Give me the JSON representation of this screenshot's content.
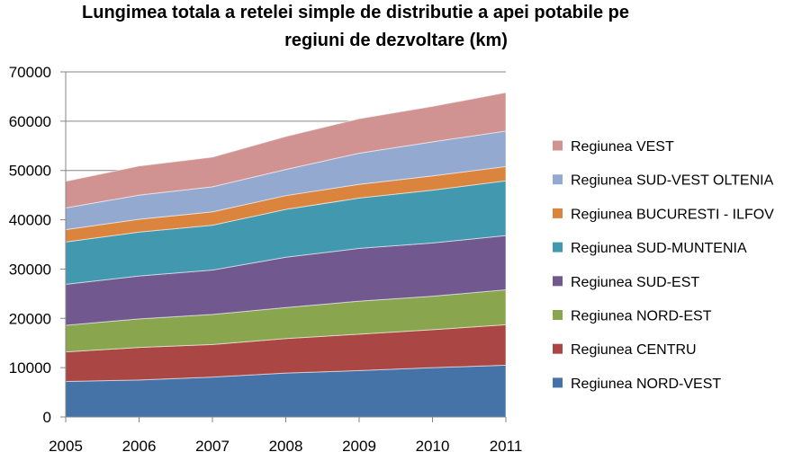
{
  "chart_data": {
    "type": "area",
    "stacked": true,
    "title_lines": [
      "Lungimea totala a retelei simple de distributie a apei potabile pe",
      "regiuni de dezvoltare  (km)"
    ],
    "x": [
      "2005",
      "2006",
      "2007",
      "2008",
      "2009",
      "2010",
      "2011"
    ],
    "ylim": [
      0,
      70000
    ],
    "yticks": [
      "0",
      "10000",
      "20000",
      "30000",
      "40000",
      "50000",
      "60000",
      "70000"
    ],
    "grid": true,
    "legend_position": "right",
    "series": [
      {
        "name": "Regiunea NORD-VEST",
        "color": "#4572A7",
        "values": [
          7200,
          7500,
          8100,
          8900,
          9400,
          10000,
          10500
        ]
      },
      {
        "name": "Regiunea CENTRU",
        "color": "#AA4643",
        "values": [
          6000,
          6600,
          6600,
          7000,
          7400,
          7700,
          8200
        ]
      },
      {
        "name": "Regiunea NORD-EST",
        "color": "#89A54E",
        "values": [
          5400,
          5800,
          6100,
          6300,
          6700,
          6800,
          7100
        ]
      },
      {
        "name": "Regiunea SUD-EST",
        "color": "#71588F",
        "values": [
          8300,
          8700,
          9000,
          10200,
          10700,
          10800,
          11000
        ]
      },
      {
        "name": "Regiunea SUD-MUNTENIA",
        "color": "#4198AF",
        "values": [
          8600,
          8900,
          9100,
          9700,
          10200,
          10700,
          11100
        ]
      },
      {
        "name": "Regiunea BUCURESTI - ILFOV",
        "color": "#DB843D",
        "values": [
          2500,
          2600,
          2700,
          2800,
          2800,
          2900,
          2900
        ]
      },
      {
        "name": "Regiunea SUD-VEST OLTENIA",
        "color": "#93A9CF",
        "values": [
          4400,
          4900,
          5100,
          5300,
          6300,
          6900,
          7200
        ]
      },
      {
        "name": "Regiunea VEST",
        "color": "#D19392",
        "values": [
          5400,
          5900,
          6000,
          6700,
          7000,
          7200,
          7800
        ]
      }
    ]
  }
}
